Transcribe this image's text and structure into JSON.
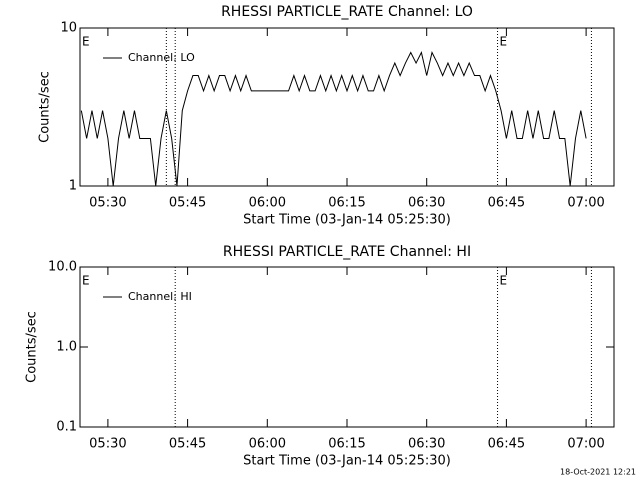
{
  "chart_data": [
    {
      "type": "line",
      "title": "RHESSI PARTICLE_RATE Channel: LO",
      "xlabel": "Start Time (03-Jan-14 05:25:30)",
      "ylabel": "Counts/sec",
      "log_y": true,
      "ylim": [
        1,
        10
      ],
      "yticks": [
        1,
        10
      ],
      "xlim": [
        "05:24:45",
        "07:05:15"
      ],
      "xticks": [
        "05:30",
        "05:45",
        "06:00",
        "06:15",
        "06:30",
        "06:45",
        "07:00"
      ],
      "vlines": [
        "05:41:00",
        "05:42:40",
        "06:43:20",
        "07:01:00"
      ],
      "annotations": [
        {
          "text": "E",
          "x": "05:24:45"
        },
        {
          "text": "E",
          "x": "06:43:20"
        }
      ],
      "legend": "upper left",
      "x": [
        "05:25",
        "05:26",
        "05:27",
        "05:28",
        "05:29",
        "05:30",
        "05:31",
        "05:32",
        "05:33",
        "05:34",
        "05:35",
        "05:36",
        "05:37",
        "05:38",
        "05:39",
        "05:40",
        "05:41",
        "05:42",
        "05:43",
        "05:44",
        "05:45",
        "05:46",
        "05:47",
        "05:48",
        "05:49",
        "05:50",
        "05:51",
        "05:52",
        "05:53",
        "05:54",
        "05:55",
        "05:56",
        "05:57",
        "05:58",
        "05:59",
        "06:00",
        "06:01",
        "06:02",
        "06:03",
        "06:04",
        "06:05",
        "06:06",
        "06:07",
        "06:08",
        "06:09",
        "06:10",
        "06:11",
        "06:12",
        "06:13",
        "06:14",
        "06:15",
        "06:16",
        "06:17",
        "06:18",
        "06:19",
        "06:20",
        "06:21",
        "06:22",
        "06:23",
        "06:24",
        "06:25",
        "06:26",
        "06:27",
        "06:28",
        "06:29",
        "06:30",
        "06:31",
        "06:32",
        "06:33",
        "06:34",
        "06:35",
        "06:36",
        "06:37",
        "06:38",
        "06:39",
        "06:40",
        "06:41",
        "06:42",
        "06:43",
        "06:44",
        "06:45",
        "06:46",
        "06:47",
        "06:48",
        "06:49",
        "06:50",
        "06:51",
        "06:52",
        "06:53",
        "06:54",
        "06:55",
        "06:56",
        "06:57",
        "06:58",
        "06:59",
        "07:00"
      ],
      "series": [
        {
          "name": "Channel: LO",
          "color": "#000000",
          "values": [
            3,
            2,
            3,
            2,
            3,
            2,
            1,
            2,
            3,
            2,
            3,
            2,
            2,
            2,
            1,
            2,
            3,
            2,
            1,
            3,
            4,
            5,
            5,
            4,
            5,
            4,
            5,
            5,
            4,
            5,
            4,
            5,
            4,
            4,
            4,
            4,
            4,
            4,
            4,
            4,
            5,
            4,
            5,
            4,
            4,
            5,
            4,
            5,
            4,
            5,
            4,
            5,
            4,
            5,
            4,
            4,
            5,
            4,
            5,
            6,
            5,
            6,
            7,
            6,
            7,
            5,
            7,
            6,
            5,
            6,
            5,
            6,
            5,
            6,
            5,
            5,
            4,
            5,
            4,
            3,
            2,
            3,
            2,
            2,
            3,
            2,
            3,
            2,
            2,
            3,
            2,
            2,
            1,
            2,
            3,
            2
          ]
        }
      ]
    },
    {
      "type": "line",
      "title": "RHESSI PARTICLE_RATE Channel: HI",
      "xlabel": "Start Time (03-Jan-14 05:25:30)",
      "ylabel": "Counts/sec",
      "log_y": true,
      "ylim": [
        0.1,
        10
      ],
      "yticks": [
        0.1,
        {
          "value": 1,
          "label": "1.0"
        },
        {
          "value": 10,
          "label": "10.0"
        }
      ],
      "xlim": [
        "05:24:45",
        "07:05:15"
      ],
      "xticks": [
        "05:30",
        "05:45",
        "06:00",
        "06:15",
        "06:30",
        "06:45",
        "07:00"
      ],
      "vlines": [
        "05:42:40",
        "06:43:20",
        "07:01:00"
      ],
      "annotations": [
        {
          "text": "E",
          "x": "05:24:45"
        },
        {
          "text": "E",
          "x": "06:43:20"
        }
      ],
      "legend": "upper left",
      "x": [],
      "series": [
        {
          "name": "Channel: HI",
          "color": "#000000",
          "values": []
        }
      ]
    }
  ],
  "footer": "18-Oct-2021 12:21"
}
